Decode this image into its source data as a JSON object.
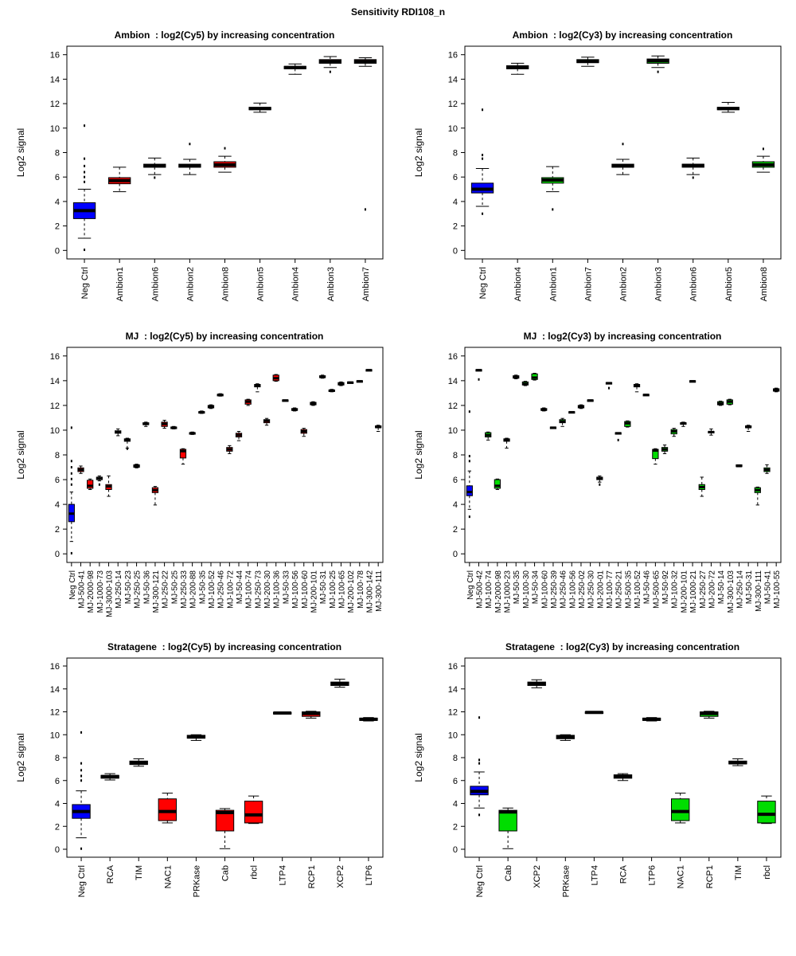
{
  "title": "Sensitivity RDI108_n",
  "colors": {
    "neg": "#0000ff",
    "cy5": "#ff0000",
    "cy3": "#00dd00",
    "frame": "#000000"
  },
  "ylabel": "Log2 signal",
  "box_format": [
    "label",
    "color_key",
    "whisker_low",
    "q1",
    "median",
    "q3",
    "whisker_high",
    "outliers"
  ],
  "chart_data": [
    {
      "type": "boxplot",
      "title": "Ambion  : log2(Cy5) by increasing concentration",
      "ylabel": "Log2 signal",
      "ylim": [
        0,
        16
      ],
      "yticks": [
        0,
        2,
        4,
        6,
        8,
        10,
        12,
        14,
        16
      ],
      "boxes": [
        [
          "Neg Ctrl",
          "neg",
          1.0,
          2.6,
          3.25,
          3.9,
          5.0,
          [
            0.05,
            5.6,
            6.0,
            6.4,
            6.9,
            7.5,
            10.2
          ]
        ],
        [
          "Ambion1",
          "cy5",
          4.8,
          5.45,
          5.7,
          5.95,
          6.8,
          []
        ],
        [
          "Ambion6",
          "cy5",
          6.2,
          6.8,
          6.9,
          7.05,
          7.55,
          [
            5.95
          ]
        ],
        [
          "Ambion2",
          "cy5",
          6.2,
          6.8,
          6.9,
          7.05,
          7.45,
          [
            8.7
          ]
        ],
        [
          "Ambion8",
          "cy5",
          6.4,
          6.8,
          7.0,
          7.25,
          7.7,
          [
            8.35
          ]
        ],
        [
          "Ambion5",
          "cy5",
          11.3,
          11.5,
          11.6,
          11.7,
          12.05,
          []
        ],
        [
          "Ambion4",
          "cy5",
          14.4,
          14.85,
          14.95,
          15.05,
          15.25,
          []
        ],
        [
          "Ambion3",
          "cy5",
          14.95,
          15.3,
          15.45,
          15.6,
          15.85,
          [
            14.6
          ]
        ],
        [
          "Ambion7",
          "cy5",
          15.05,
          15.3,
          15.45,
          15.6,
          15.75,
          [
            3.35
          ]
        ]
      ]
    },
    {
      "type": "boxplot",
      "title": "Ambion  : log2(Cy3) by increasing concentration",
      "ylabel": "Log2 signal",
      "ylim": [
        0,
        16
      ],
      "yticks": [
        0,
        2,
        4,
        6,
        8,
        10,
        12,
        14,
        16
      ],
      "boxes": [
        [
          "Neg Ctrl",
          "neg",
          3.6,
          4.7,
          5.0,
          5.5,
          6.7,
          [
            3.0,
            7.5,
            7.8,
            11.5
          ]
        ],
        [
          "Ambion4",
          "cy3",
          14.4,
          14.85,
          14.95,
          15.1,
          15.3,
          []
        ],
        [
          "Ambion1",
          "cy3",
          4.8,
          5.5,
          5.75,
          5.95,
          6.85,
          [
            3.35
          ]
        ],
        [
          "Ambion7",
          "cy3",
          15.05,
          15.35,
          15.45,
          15.6,
          15.8,
          []
        ],
        [
          "Ambion2",
          "cy3",
          6.2,
          6.8,
          6.9,
          7.05,
          7.45,
          [
            8.7
          ]
        ],
        [
          "Ambion3",
          "cy3",
          14.95,
          15.3,
          15.5,
          15.65,
          15.9,
          [
            14.6
          ]
        ],
        [
          "Ambion6",
          "cy3",
          6.2,
          6.8,
          6.95,
          7.05,
          7.55,
          [
            5.95
          ]
        ],
        [
          "Ambion5",
          "cy3",
          11.3,
          11.5,
          11.6,
          11.7,
          12.1,
          []
        ],
        [
          "Ambion8",
          "cy3",
          6.4,
          6.8,
          7.0,
          7.25,
          7.7,
          [
            8.3
          ]
        ]
      ]
    },
    {
      "type": "boxplot",
      "title": "MJ  : log2(Cy5) by increasing concentration",
      "ylabel": "Log2 signal",
      "ylim": [
        0,
        16
      ],
      "yticks": [
        0,
        2,
        4,
        6,
        8,
        10,
        12,
        14,
        16
      ],
      "boxes": [
        [
          "Neg Ctrl",
          "neg",
          1.0,
          2.6,
          3.25,
          4.0,
          5.0,
          [
            0.05,
            5.6,
            6.05,
            6.5,
            7.0,
            7.5,
            10.2
          ]
        ],
        [
          "MJ-500-41",
          "cy5",
          6.5,
          6.65,
          6.8,
          6.95,
          7.1,
          []
        ],
        [
          "MJ-2000-98",
          "cy5",
          5.2,
          5.3,
          5.5,
          5.95,
          6.05,
          []
        ],
        [
          "MJ-1000-73",
          "cy5",
          5.9,
          6.0,
          6.1,
          6.2,
          6.3,
          [
            5.6
          ]
        ],
        [
          "MJ-3000-103",
          "cy5",
          4.65,
          5.2,
          5.45,
          5.6,
          6.3,
          []
        ],
        [
          "MJ-250-14",
          "cy5",
          9.55,
          9.75,
          9.85,
          9.95,
          10.1,
          []
        ],
        [
          "MJ-50-23",
          "cy5",
          8.55,
          9.1,
          9.2,
          9.3,
          9.35,
          [
            8.5
          ]
        ],
        [
          "MJ-250-25",
          "cy5",
          6.95,
          7.0,
          7.1,
          7.2,
          7.25,
          []
        ],
        [
          "MJ-50-36",
          "cy5",
          10.3,
          10.45,
          10.5,
          10.6,
          10.65,
          []
        ],
        [
          "MJ-300-121",
          "cy5",
          3.95,
          4.95,
          5.15,
          5.35,
          5.45,
          []
        ],
        [
          "MJ-250-22",
          "cy5",
          10.15,
          10.3,
          10.5,
          10.65,
          10.8,
          []
        ],
        [
          "MJ-50-25",
          "cy5",
          10.1,
          10.15,
          10.2,
          10.25,
          10.3,
          []
        ],
        [
          "MJ-250-33",
          "cy5",
          7.25,
          7.75,
          8.3,
          8.45,
          8.5,
          []
        ],
        [
          "MJ-200-88",
          "cy5",
          9.65,
          9.7,
          9.75,
          9.8,
          9.85,
          []
        ],
        [
          "MJ-50-35",
          "cy5",
          11.35,
          11.4,
          11.45,
          11.5,
          11.55,
          []
        ],
        [
          "MJ-100-52",
          "cy5",
          11.75,
          11.8,
          11.9,
          12.0,
          12.05,
          []
        ],
        [
          "MJ-250-46",
          "cy5",
          12.75,
          12.8,
          12.85,
          12.9,
          12.95,
          []
        ],
        [
          "MJ-100-72",
          "cy5",
          8.1,
          8.3,
          8.45,
          8.6,
          8.75,
          []
        ],
        [
          "MJ-50-44",
          "cy5",
          9.15,
          9.45,
          9.6,
          9.75,
          9.9,
          []
        ],
        [
          "MJ-100-74",
          "cy5",
          12.0,
          12.1,
          12.3,
          12.45,
          12.5,
          []
        ],
        [
          "MJ-250-73",
          "cy5",
          13.1,
          13.5,
          13.6,
          13.7,
          13.75,
          []
        ],
        [
          "MJ-200-30",
          "cy5",
          10.4,
          10.6,
          10.75,
          10.85,
          10.95,
          []
        ],
        [
          "MJ-100-36",
          "cy5",
          13.95,
          14.0,
          14.2,
          14.45,
          14.5,
          []
        ],
        [
          "MJ-50-33",
          "cy5",
          12.35,
          12.35,
          12.4,
          12.45,
          12.45,
          []
        ],
        [
          "MJ-100-56",
          "cy5",
          11.55,
          11.6,
          11.65,
          11.75,
          11.8,
          []
        ],
        [
          "MJ-100-60",
          "cy5",
          9.5,
          9.75,
          9.9,
          10.05,
          10.15,
          []
        ],
        [
          "MJ-200-101",
          "cy5",
          12.0,
          12.05,
          12.15,
          12.25,
          12.3,
          []
        ],
        [
          "MJ-50-31",
          "cy5",
          14.2,
          14.25,
          14.3,
          14.4,
          14.45,
          []
        ],
        [
          "MJ-100-25",
          "cy5",
          13.1,
          13.15,
          13.2,
          13.25,
          13.3,
          []
        ],
        [
          "MJ-100-65",
          "cy5",
          13.6,
          13.65,
          13.75,
          13.85,
          13.9,
          []
        ],
        [
          "MJ-200-102",
          "cy5",
          13.8,
          13.8,
          13.85,
          13.9,
          13.9,
          []
        ],
        [
          "MJ-100-78",
          "cy5",
          13.9,
          13.9,
          13.95,
          14.0,
          14.0,
          []
        ],
        [
          "MJ-300-142",
          "cy5",
          14.8,
          14.8,
          14.85,
          14.9,
          14.9,
          []
        ],
        [
          "MJ-300-111",
          "cy5",
          9.9,
          10.2,
          10.25,
          10.35,
          10.4,
          []
        ]
      ]
    },
    {
      "type": "boxplot",
      "title": "MJ  : log2(Cy3) by increasing concentration",
      "ylabel": "Log2 signal",
      "ylim": [
        0,
        16
      ],
      "yticks": [
        0,
        2,
        4,
        6,
        8,
        10,
        12,
        14,
        16
      ],
      "boxes": [
        [
          "Neg Ctrl",
          "neg",
          3.6,
          4.7,
          5.0,
          5.5,
          6.7,
          [
            3.0,
            7.5,
            7.9,
            11.5
          ]
        ],
        [
          "MJ-500-42",
          "cy3",
          14.8,
          14.8,
          14.85,
          14.9,
          14.9,
          [
            14.1
          ]
        ],
        [
          "MJ-100-74",
          "cy3",
          9.2,
          9.45,
          9.6,
          9.8,
          9.85,
          []
        ],
        [
          "MJ-2000-98",
          "cy3",
          5.2,
          5.3,
          5.5,
          6.0,
          6.05,
          []
        ],
        [
          "MJ-1000-23",
          "cy3",
          8.55,
          9.1,
          9.2,
          9.3,
          9.35,
          []
        ],
        [
          "MJ-50-35",
          "cy3",
          14.15,
          14.2,
          14.3,
          14.4,
          14.45,
          []
        ],
        [
          "MJ-100-30",
          "cy3",
          13.6,
          13.65,
          13.75,
          13.9,
          13.95,
          []
        ],
        [
          "MJ-50-34",
          "cy3",
          14.05,
          14.1,
          14.25,
          14.55,
          14.6,
          []
        ],
        [
          "MJ-100-60",
          "cy3",
          11.55,
          11.6,
          11.65,
          11.75,
          11.8,
          []
        ],
        [
          "MJ-250-39",
          "cy3",
          10.15,
          10.15,
          10.2,
          10.25,
          10.25,
          []
        ],
        [
          "MJ-250-46",
          "cy3",
          10.3,
          10.6,
          10.7,
          10.85,
          10.95,
          []
        ],
        [
          "MJ-100-56",
          "cy3",
          11.4,
          11.4,
          11.45,
          11.5,
          11.5,
          []
        ],
        [
          "MJ-250-02",
          "cy3",
          11.75,
          11.8,
          11.9,
          12.0,
          12.05,
          []
        ],
        [
          "MJ-250-30",
          "cy3",
          12.35,
          12.35,
          12.4,
          12.45,
          12.45,
          []
        ],
        [
          "MJ-200-01",
          "cy3",
          5.8,
          6.0,
          6.1,
          6.2,
          6.3,
          [
            5.6
          ]
        ],
        [
          "MJ-100-77",
          "cy3",
          13.75,
          13.75,
          13.8,
          13.85,
          13.85,
          [
            13.4
          ]
        ],
        [
          "MJ-250-21",
          "cy3",
          9.7,
          9.7,
          9.75,
          9.8,
          9.8,
          [
            9.2
          ]
        ],
        [
          "MJ-500-35",
          "cy3",
          10.25,
          10.3,
          10.55,
          10.7,
          10.75,
          []
        ],
        [
          "MJ-100-52",
          "cy3",
          13.1,
          13.5,
          13.6,
          13.7,
          13.75,
          []
        ],
        [
          "MJ-50-46",
          "cy3",
          12.8,
          12.8,
          12.85,
          12.9,
          12.9,
          []
        ],
        [
          "MJ-500-65",
          "cy3",
          7.25,
          7.7,
          8.35,
          8.45,
          8.5,
          []
        ],
        [
          "MJ-50-92",
          "cy3",
          8.1,
          8.3,
          8.45,
          8.6,
          8.8,
          []
        ],
        [
          "MJ-100-32",
          "cy3",
          9.5,
          9.7,
          9.9,
          10.05,
          10.15,
          []
        ],
        [
          "MJ-200-101",
          "cy3",
          10.3,
          10.5,
          10.55,
          10.6,
          10.65,
          []
        ],
        [
          "MJ-1000-21",
          "cy3",
          13.9,
          13.9,
          13.95,
          14.0,
          14.0,
          []
        ],
        [
          "MJ-250-27",
          "cy3",
          4.65,
          5.2,
          5.4,
          5.6,
          6.2,
          []
        ],
        [
          "MJ-200-72",
          "cy3",
          9.6,
          9.8,
          9.85,
          9.9,
          10.1,
          []
        ],
        [
          "MJ-50-14",
          "cy3",
          12.0,
          12.05,
          12.15,
          12.3,
          12.35,
          []
        ],
        [
          "MJ-300-103",
          "cy3",
          12.05,
          12.1,
          12.3,
          12.45,
          12.5,
          []
        ],
        [
          "MJ-250-14",
          "cy3",
          7.05,
          7.05,
          7.1,
          7.2,
          7.2,
          []
        ],
        [
          "MJ-50-31",
          "cy3",
          9.9,
          10.2,
          10.25,
          10.35,
          10.4,
          []
        ],
        [
          "MJ-300-111",
          "cy3",
          3.95,
          4.95,
          5.15,
          5.35,
          5.4,
          []
        ],
        [
          "MJ-50-41",
          "cy3",
          6.5,
          6.65,
          6.8,
          6.95,
          7.2,
          []
        ],
        [
          "MJ-100-55",
          "cy3",
          13.1,
          13.15,
          13.25,
          13.35,
          13.4,
          []
        ]
      ]
    },
    {
      "type": "boxplot",
      "title": "Stratagene  : log2(Cy5) by increasing concentration",
      "ylabel": "Log2 signal",
      "ylim": [
        0,
        16
      ],
      "yticks": [
        0,
        2,
        4,
        6,
        8,
        10,
        12,
        14,
        16
      ],
      "boxes": [
        [
          "Neg Ctrl",
          "neg",
          1.0,
          2.7,
          3.3,
          3.9,
          5.1,
          [
            0.05,
            6.0,
            6.4,
            6.9,
            7.5,
            10.2
          ]
        ],
        [
          "RCA",
          "cy5",
          6.05,
          6.2,
          6.35,
          6.45,
          6.6,
          []
        ],
        [
          "TIM",
          "cy5",
          7.25,
          7.4,
          7.55,
          7.7,
          7.9,
          []
        ],
        [
          "NAC1",
          "cy5",
          2.3,
          2.5,
          3.3,
          4.4,
          4.9,
          []
        ],
        [
          "PRKase",
          "cy5",
          9.5,
          9.7,
          9.8,
          9.95,
          10.0,
          []
        ],
        [
          "Cab",
          "cy5",
          0.05,
          1.6,
          3.2,
          3.4,
          3.55,
          []
        ],
        [
          "rbcl",
          "cy5",
          2.25,
          2.3,
          3.0,
          4.2,
          4.65,
          []
        ],
        [
          "LTP4",
          "cy5",
          11.85,
          11.85,
          11.9,
          11.95,
          11.95,
          []
        ],
        [
          "RCP1",
          "cy5",
          11.45,
          11.6,
          11.85,
          12.0,
          12.05,
          []
        ],
        [
          "XCP2",
          "cy5",
          14.15,
          14.3,
          14.45,
          14.6,
          14.85,
          []
        ],
        [
          "LTP6",
          "cy5",
          11.2,
          11.25,
          11.35,
          11.45,
          11.5,
          []
        ]
      ]
    },
    {
      "type": "boxplot",
      "title": "Stratagene  : log2(Cy3) by increasing concentration",
      "ylabel": "Log2 signal",
      "ylim": [
        0,
        16
      ],
      "yticks": [
        0,
        2,
        4,
        6,
        8,
        10,
        12,
        14,
        16
      ],
      "boxes": [
        [
          "Neg Ctrl",
          "neg",
          3.6,
          4.75,
          5.05,
          5.5,
          6.75,
          [
            3.0,
            7.5,
            7.8,
            11.5
          ]
        ],
        [
          "Cab",
          "cy3",
          0.05,
          1.6,
          3.25,
          3.4,
          3.6,
          []
        ],
        [
          "XCP2",
          "cy3",
          14.1,
          14.3,
          14.45,
          14.6,
          14.8,
          []
        ],
        [
          "PRKase",
          "cy3",
          9.5,
          9.65,
          9.8,
          9.95,
          10.0,
          []
        ],
        [
          "LTP4",
          "cy3",
          11.9,
          11.9,
          11.95,
          12.0,
          12.0,
          []
        ],
        [
          "RCA",
          "cy3",
          6.0,
          6.2,
          6.35,
          6.5,
          6.6,
          []
        ],
        [
          "LTP6",
          "cy3",
          11.2,
          11.25,
          11.35,
          11.45,
          11.5,
          []
        ],
        [
          "NAC1",
          "cy3",
          2.3,
          2.5,
          3.3,
          4.4,
          4.9,
          []
        ],
        [
          "RCP1",
          "cy3",
          11.45,
          11.6,
          11.85,
          12.0,
          12.05,
          []
        ],
        [
          "TIM",
          "cy3",
          7.3,
          7.45,
          7.55,
          7.7,
          7.9,
          []
        ],
        [
          "rbcl",
          "cy3",
          2.25,
          2.3,
          3.05,
          4.2,
          4.65,
          []
        ]
      ]
    }
  ]
}
